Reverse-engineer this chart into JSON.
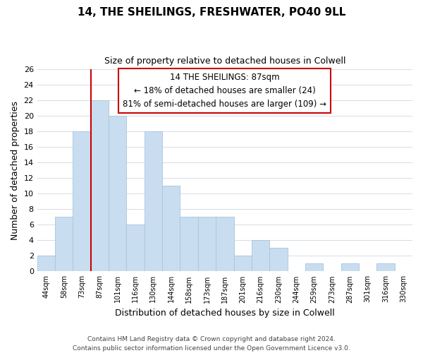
{
  "title": "14, THE SHEILINGS, FRESHWATER, PO40 9LL",
  "subtitle": "Size of property relative to detached houses in Colwell",
  "xlabel": "Distribution of detached houses by size in Colwell",
  "ylabel": "Number of detached properties",
  "bin_labels": [
    "44sqm",
    "58sqm",
    "73sqm",
    "87sqm",
    "101sqm",
    "116sqm",
    "130sqm",
    "144sqm",
    "158sqm",
    "173sqm",
    "187sqm",
    "201sqm",
    "216sqm",
    "230sqm",
    "244sqm",
    "259sqm",
    "273sqm",
    "287sqm",
    "301sqm",
    "316sqm",
    "330sqm"
  ],
  "bar_heights": [
    2,
    7,
    18,
    22,
    20,
    6,
    18,
    11,
    7,
    7,
    7,
    2,
    4,
    3,
    0,
    1,
    0,
    1,
    0,
    1,
    0
  ],
  "bar_color": "#c9ddf0",
  "bar_edge_color": "#a8c4dc",
  "vline_x": 3,
  "vline_color": "#cc0000",
  "ylim": [
    0,
    26
  ],
  "yticks": [
    0,
    2,
    4,
    6,
    8,
    10,
    12,
    14,
    16,
    18,
    20,
    22,
    24,
    26
  ],
  "annotation_line1": "14 THE SHEILINGS: 87sqm",
  "annotation_line2": "← 18% of detached houses are smaller (24)",
  "annotation_line3": "81% of semi-detached houses are larger (109) →",
  "annotation_box_color": "#ffffff",
  "annotation_box_edge": "#cc0000",
  "footer_line1": "Contains HM Land Registry data © Crown copyright and database right 2024.",
  "footer_line2": "Contains public sector information licensed under the Open Government Licence v3.0.",
  "bg_color": "#ffffff",
  "grid_color": "#d4dde6"
}
